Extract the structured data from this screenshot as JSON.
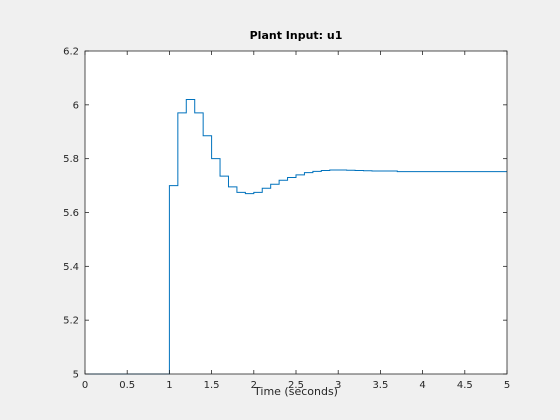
{
  "chart_data": {
    "type": "line",
    "step": true,
    "title": "Plant Input:  u1",
    "xlabel": "Time (seconds)",
    "ylabel": "",
    "xlim": [
      0,
      5
    ],
    "ylim": [
      5,
      6.2
    ],
    "xticks": [
      0,
      0.5,
      1,
      1.5,
      2,
      2.5,
      3,
      3.5,
      4,
      4.5,
      5
    ],
    "xtick_labels": [
      "0",
      "0.5",
      "1",
      "1.5",
      "2",
      "2.5",
      "3",
      "3.5",
      "4",
      "4.5",
      "5"
    ],
    "yticks": [
      5,
      5.2,
      5.4,
      5.6,
      5.8,
      6,
      6.2
    ],
    "ytick_labels": [
      "5",
      "5.2",
      "5.4",
      "5.6",
      "5.8",
      "6",
      "6.2"
    ],
    "grid": false,
    "line_color": "#0072bd",
    "series": [
      {
        "x": [
          0,
          1.0,
          1.1,
          1.2,
          1.3,
          1.4,
          1.5,
          1.6,
          1.7,
          1.8,
          1.9,
          2.0,
          2.1,
          2.2,
          2.3,
          2.4,
          2.5,
          2.6,
          2.7,
          2.8,
          2.9,
          3.0,
          3.1,
          3.2,
          3.3,
          3.4,
          3.5,
          3.6,
          3.7,
          5.0
        ],
        "y": [
          5.0,
          5.7,
          5.97,
          6.02,
          5.97,
          5.885,
          5.8,
          5.735,
          5.695,
          5.675,
          5.67,
          5.675,
          5.69,
          5.705,
          5.72,
          5.73,
          5.74,
          5.748,
          5.753,
          5.756,
          5.758,
          5.758,
          5.757,
          5.756,
          5.755,
          5.754,
          5.754,
          5.754,
          5.752,
          5.752
        ]
      }
    ]
  }
}
